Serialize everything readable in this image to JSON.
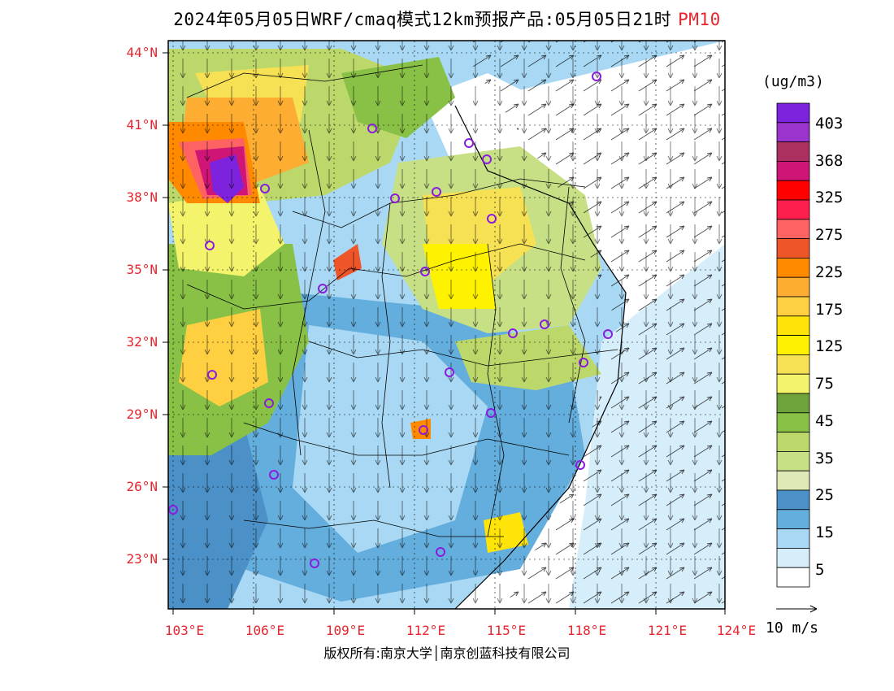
{
  "title": {
    "main": "2024年05月05日WRF/cmaq模式12km预报产品:05月05日21时",
    "product": "PM10"
  },
  "map": {
    "lat_labels": [
      "44°N",
      "41°N",
      "38°N",
      "35°N",
      "32°N",
      "29°N",
      "26°N",
      "23°N"
    ],
    "lon_labels": [
      "103°E",
      "106°E",
      "109°E",
      "112°E",
      "115°E",
      "118°E",
      "121°E",
      "124°E"
    ]
  },
  "legend": {
    "unit": "(ug/m3)",
    "labels": [
      "403",
      "368",
      "325",
      "275",
      "225",
      "175",
      "125",
      "75",
      "45",
      "35",
      "25",
      "15",
      "5"
    ],
    "colors": [
      "#7d22dd",
      "#9b34cc",
      "#ab2f5f",
      "#cf1575",
      "#ff0000",
      "#fe1f4f",
      "#fe6262",
      "#ee5529",
      "#ff8a00",
      "#fdad32",
      "#ffcf42",
      "#ffe40a",
      "#fff200",
      "#f6e054",
      "#f3f36c",
      "#6ea33c",
      "#88c145",
      "#bcd86a",
      "#c7e086",
      "#dfe9b8",
      "#4b91c8",
      "#64aedd",
      "#a8d8f3",
      "#d6eefa",
      "#ffffff"
    ]
  },
  "wind": {
    "reference_label": "10 m/s"
  },
  "copyright": "版权所有:南京大学│南京创蓝科技有限公司"
}
